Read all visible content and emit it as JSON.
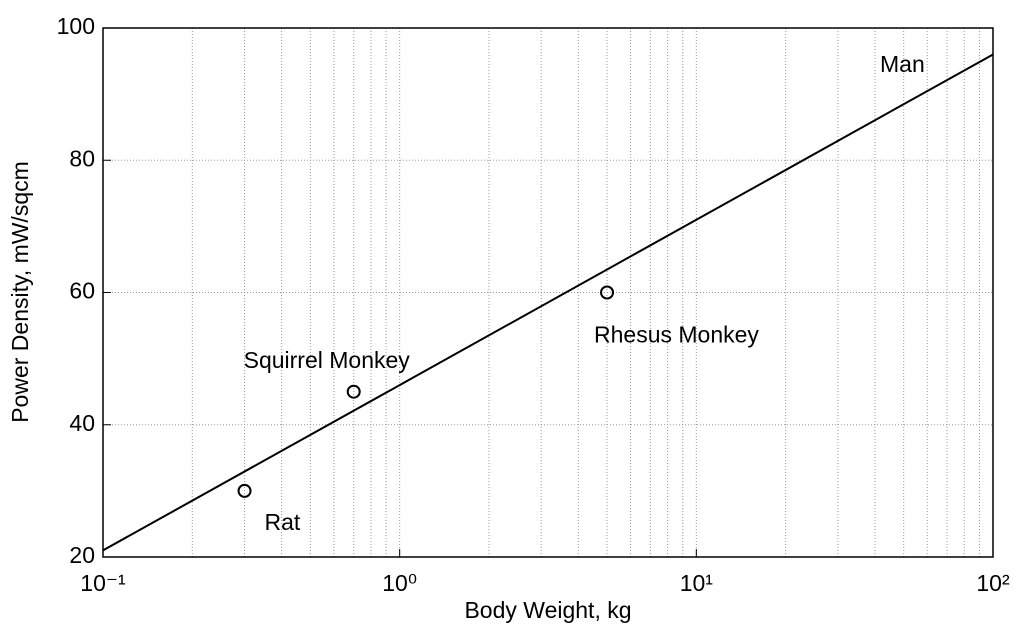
{
  "chart_data": {
    "type": "line",
    "x_label": "Body Weight, kg",
    "y_label": "Power Density, mW/sqcm",
    "xscale": "log",
    "xlim": [
      0.1,
      100
    ],
    "ylim": [
      20,
      100
    ],
    "xticks": [
      {
        "value": 0.1,
        "label": "10⁻¹"
      },
      {
        "value": 1,
        "label": "10⁰"
      },
      {
        "value": 10,
        "label": "10¹"
      },
      {
        "value": 100,
        "label": "10²"
      }
    ],
    "xminor": [
      0.2,
      0.3,
      0.4,
      0.5,
      0.6,
      0.7,
      0.8,
      0.9,
      2,
      3,
      4,
      5,
      6,
      7,
      8,
      9,
      20,
      30,
      40,
      50,
      60,
      70,
      80,
      90
    ],
    "yticks": [
      20,
      40,
      60,
      80,
      100
    ],
    "grid": true,
    "color": "#000000",
    "x": [
      0.1,
      1,
      10,
      100
    ],
    "values": [
      21,
      46,
      71,
      96
    ],
    "line_label": "Man",
    "points": [
      {
        "label": "Rat",
        "x": 0.3,
        "y": 30
      },
      {
        "label": "Squirrel Monkey",
        "x": 0.7,
        "y": 45
      },
      {
        "label": "Rhesus Monkey",
        "x": 5,
        "y": 60
      }
    ]
  }
}
